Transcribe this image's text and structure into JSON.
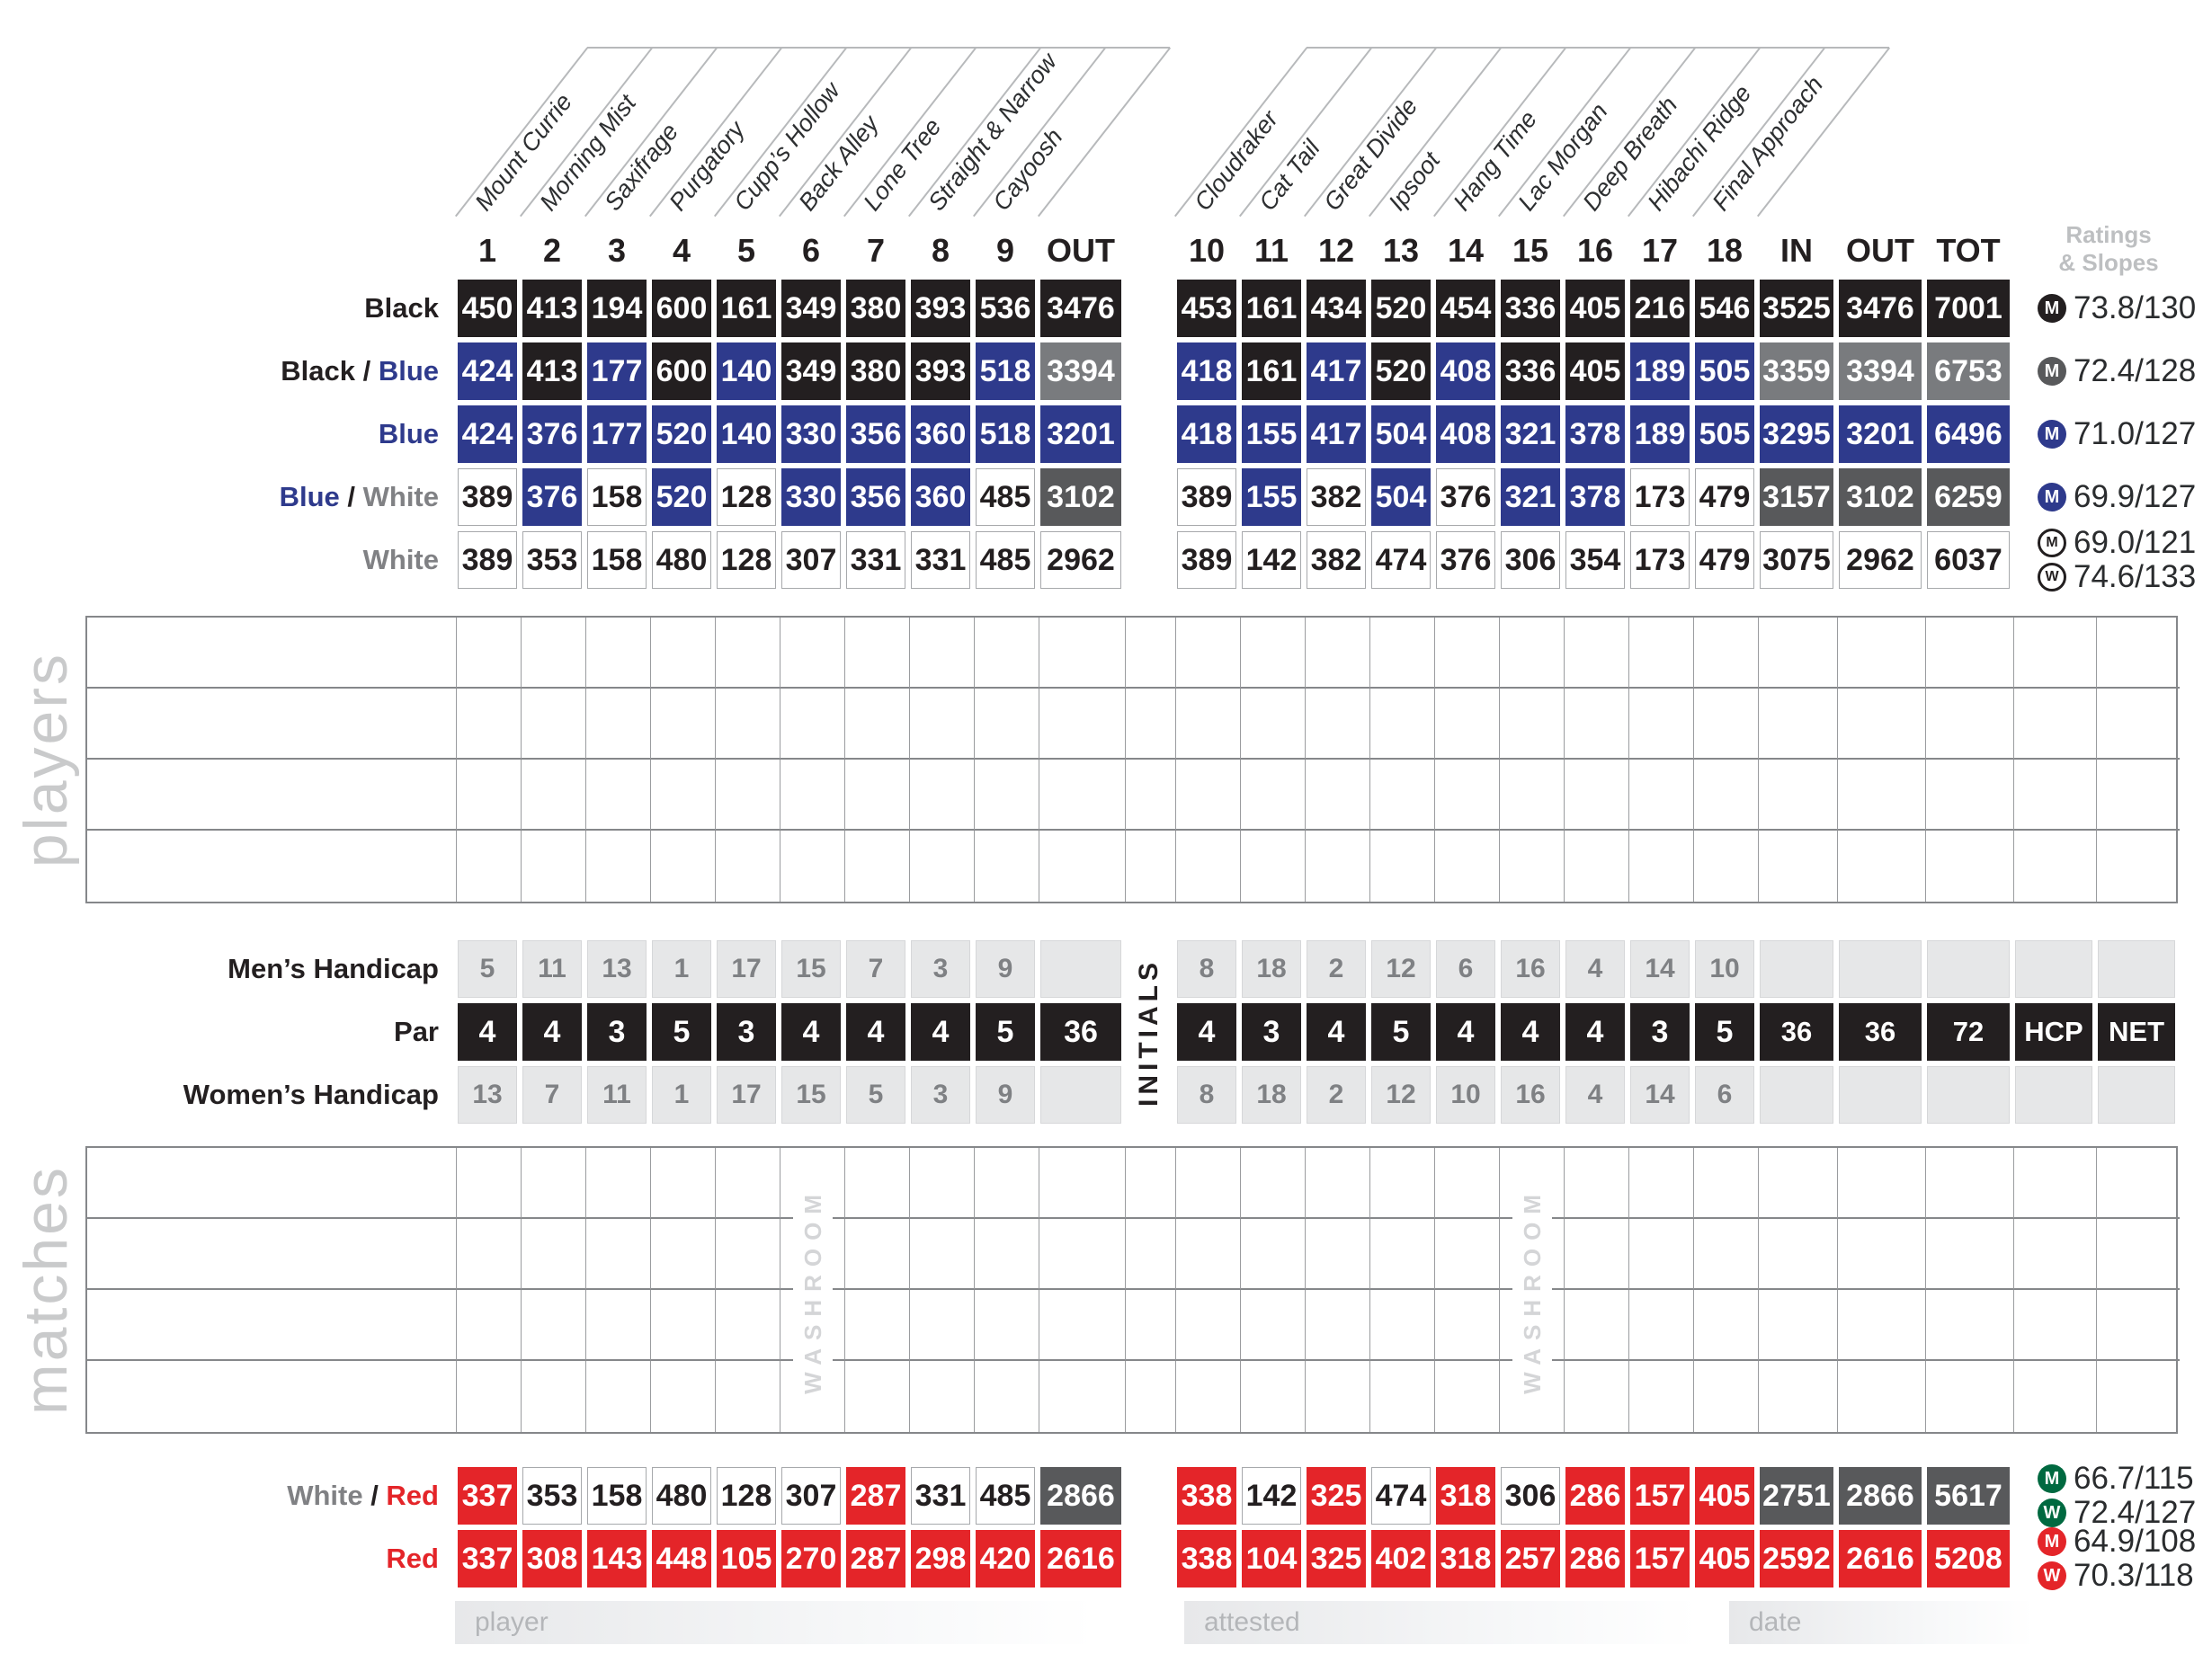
{
  "colors": {
    "black": "#231f20",
    "blue": "#2e3a8c",
    "white": "#ffffff",
    "gray_mid": "#797b7e",
    "gray_dark": "#58595b",
    "red": "#e42529",
    "green": "#006940",
    "light_gray": "#e6e7e8",
    "label_gray": "#808184"
  },
  "front_nine": {
    "numbers": [
      "1",
      "2",
      "3",
      "4",
      "5",
      "6",
      "7",
      "8",
      "9"
    ],
    "out_label": "OUT",
    "hole_names": [
      "Mount Currie",
      "Morning Mist",
      "Saxifrage",
      "Purgatory",
      "Cupp’s Hollow",
      "Back Alley",
      "Lone Tree",
      "Straight & Narrow",
      "Cayoosh"
    ]
  },
  "back_nine": {
    "numbers": [
      "10",
      "11",
      "12",
      "13",
      "14",
      "15",
      "16",
      "17",
      "18"
    ],
    "in_label": "IN",
    "out_label": "OUT",
    "tot_label": "TOT",
    "hole_names": [
      "Cloudraker",
      "Cat Tail",
      "Great Divide",
      "Ipsoot",
      "Hang Time",
      "Lac Morgan",
      "Deep Breath",
      "Hibachi Ridge",
      "Final Approach"
    ]
  },
  "ratings_header": {
    "line1": "Ratings",
    "line2": "& Slopes"
  },
  "tee_rows": [
    {
      "label_parts": [
        {
          "text": "Black",
          "color": "black"
        }
      ],
      "front_values": [
        "450",
        "413",
        "194",
        "600",
        "161",
        "349",
        "380",
        "393",
        "536"
      ],
      "front_colors": [
        "k",
        "k",
        "k",
        "k",
        "k",
        "k",
        "k",
        "k",
        "k"
      ],
      "out_value": "3476",
      "out_color": "k",
      "back_values": [
        "453",
        "161",
        "434",
        "520",
        "454",
        "336",
        "405",
        "216",
        "546"
      ],
      "back_colors": [
        "k",
        "k",
        "k",
        "k",
        "k",
        "k",
        "k",
        "k",
        "k"
      ],
      "in_value": "3525",
      "out2_value": "3476",
      "tot_value": "7001",
      "totals_color": "k",
      "ratings": [
        {
          "letter": "M",
          "style": "solid",
          "color": "black",
          "value": "73.8/130"
        }
      ]
    },
    {
      "label_parts": [
        {
          "text": "Black",
          "color": "black"
        },
        {
          "text": " / ",
          "color": "black"
        },
        {
          "text": "Blue",
          "color": "blue"
        }
      ],
      "front_values": [
        "424",
        "413",
        "177",
        "600",
        "140",
        "349",
        "380",
        "393",
        "518"
      ],
      "front_colors": [
        "b",
        "k",
        "b",
        "k",
        "b",
        "k",
        "k",
        "k",
        "b"
      ],
      "out_value": "3394",
      "out_color": "g",
      "back_values": [
        "418",
        "161",
        "417",
        "520",
        "408",
        "336",
        "405",
        "189",
        "505"
      ],
      "back_colors": [
        "b",
        "k",
        "b",
        "k",
        "b",
        "k",
        "k",
        "b",
        "b"
      ],
      "in_value": "3359",
      "out2_value": "3394",
      "tot_value": "6753",
      "totals_color": "g",
      "ratings": [
        {
          "letter": "M",
          "style": "solid",
          "color": "gray_dark",
          "value": "72.4/128"
        }
      ]
    },
    {
      "label_parts": [
        {
          "text": "Blue",
          "color": "blue"
        }
      ],
      "front_values": [
        "424",
        "376",
        "177",
        "520",
        "140",
        "330",
        "356",
        "360",
        "518"
      ],
      "front_colors": [
        "b",
        "b",
        "b",
        "b",
        "b",
        "b",
        "b",
        "b",
        "b"
      ],
      "out_value": "3201",
      "out_color": "b",
      "back_values": [
        "418",
        "155",
        "417",
        "504",
        "408",
        "321",
        "378",
        "189",
        "505"
      ],
      "back_colors": [
        "b",
        "b",
        "b",
        "b",
        "b",
        "b",
        "b",
        "b",
        "b"
      ],
      "in_value": "3295",
      "out2_value": "3201",
      "tot_value": "6496",
      "totals_color": "b",
      "ratings": [
        {
          "letter": "M",
          "style": "solid",
          "color": "blue",
          "value": "71.0/127"
        }
      ]
    },
    {
      "label_parts": [
        {
          "text": "Blue",
          "color": "blue"
        },
        {
          "text": " / ",
          "color": "black"
        },
        {
          "text": "White",
          "color": "label_gray"
        }
      ],
      "front_values": [
        "389",
        "376",
        "158",
        "520",
        "128",
        "330",
        "356",
        "360",
        "485"
      ],
      "front_colors": [
        "w",
        "b",
        "w",
        "b",
        "w",
        "b",
        "b",
        "b",
        "w"
      ],
      "out_value": "3102",
      "out_color": "G",
      "back_values": [
        "389",
        "155",
        "382",
        "504",
        "376",
        "321",
        "378",
        "173",
        "479"
      ],
      "back_colors": [
        "w",
        "b",
        "w",
        "b",
        "w",
        "b",
        "b",
        "w",
        "w"
      ],
      "in_value": "3157",
      "out2_value": "3102",
      "tot_value": "6259",
      "totals_color": "G",
      "ratings": [
        {
          "letter": "M",
          "style": "solid",
          "color": "blue",
          "value": "69.9/127"
        }
      ]
    },
    {
      "label_parts": [
        {
          "text": "White",
          "color": "label_gray"
        }
      ],
      "front_values": [
        "389",
        "353",
        "158",
        "480",
        "128",
        "307",
        "331",
        "331",
        "485"
      ],
      "front_colors": [
        "w",
        "w",
        "w",
        "w",
        "w",
        "w",
        "w",
        "w",
        "w"
      ],
      "out_value": "2962",
      "out_color": "w",
      "back_values": [
        "389",
        "142",
        "382",
        "474",
        "376",
        "306",
        "354",
        "173",
        "479"
      ],
      "back_colors": [
        "w",
        "w",
        "w",
        "w",
        "w",
        "w",
        "w",
        "w",
        "w"
      ],
      "in_value": "3075",
      "out2_value": "2962",
      "tot_value": "6037",
      "totals_color": "w",
      "ratings": [
        {
          "letter": "M",
          "style": "outline",
          "color": "black",
          "value": "69.0/121"
        },
        {
          "letter": "W",
          "style": "outline",
          "color": "black",
          "value": "74.6/133"
        }
      ]
    }
  ],
  "players_section": {
    "side_label": "players",
    "rows": 4
  },
  "handicap_section": {
    "mens_label": "Men’s Handicap",
    "par_label": "Par",
    "womens_label": "Women’s Handicap",
    "initials_label": "INITIALS",
    "mens_front": [
      "5",
      "11",
      "13",
      "1",
      "17",
      "15",
      "7",
      "3",
      "9"
    ],
    "mens_back": [
      "8",
      "18",
      "2",
      "12",
      "6",
      "16",
      "4",
      "14",
      "10"
    ],
    "par_front": [
      "4",
      "4",
      "3",
      "5",
      "3",
      "4",
      "4",
      "4",
      "5"
    ],
    "par_out": "36",
    "par_back": [
      "4",
      "3",
      "4",
      "5",
      "4",
      "4",
      "4",
      "3",
      "5"
    ],
    "par_in": "36",
    "par_out2": "36",
    "par_tot": "72",
    "hcp_label": "HCP",
    "net_label": "NET",
    "womens_front": [
      "13",
      "7",
      "11",
      "1",
      "17",
      "15",
      "5",
      "3",
      "9"
    ],
    "womens_back": [
      "8",
      "18",
      "2",
      "12",
      "10",
      "16",
      "4",
      "14",
      "6"
    ]
  },
  "matches_section": {
    "side_label": "matches",
    "rows": 4,
    "washroom_label": "WASHROOM"
  },
  "bottom_rows": [
    {
      "label_parts": [
        {
          "text": "White",
          "color": "label_gray"
        },
        {
          "text": " / ",
          "color": "black"
        },
        {
          "text": "Red",
          "color": "red"
        }
      ],
      "front_values": [
        "337",
        "353",
        "158",
        "480",
        "128",
        "307",
        "287",
        "331",
        "485"
      ],
      "front_colors": [
        "r",
        "w",
        "w",
        "w",
        "w",
        "w",
        "r",
        "w",
        "w"
      ],
      "out_value": "2866",
      "out_color": "G",
      "back_values": [
        "338",
        "142",
        "325",
        "474",
        "318",
        "306",
        "286",
        "157",
        "405"
      ],
      "back_colors": [
        "r",
        "w",
        "r",
        "w",
        "r",
        "w",
        "r",
        "r",
        "r"
      ],
      "in_value": "2751",
      "out2_value": "2866",
      "tot_value": "5617",
      "totals_color": "G",
      "ratings": [
        {
          "letter": "M",
          "style": "solid",
          "color": "green",
          "value": "66.7/115"
        },
        {
          "letter": "W",
          "style": "solid",
          "color": "green",
          "value": "72.4/127"
        }
      ]
    },
    {
      "label_parts": [
        {
          "text": "Red",
          "color": "red"
        }
      ],
      "front_values": [
        "337",
        "308",
        "143",
        "448",
        "105",
        "270",
        "287",
        "298",
        "420"
      ],
      "front_colors": [
        "r",
        "r",
        "r",
        "r",
        "r",
        "r",
        "r",
        "r",
        "r"
      ],
      "out_value": "2616",
      "out_color": "r",
      "back_values": [
        "338",
        "104",
        "325",
        "402",
        "318",
        "257",
        "286",
        "157",
        "405"
      ],
      "back_colors": [
        "r",
        "r",
        "r",
        "r",
        "r",
        "r",
        "r",
        "r",
        "r"
      ],
      "in_value": "2592",
      "out2_value": "2616",
      "tot_value": "5208",
      "totals_color": "r",
      "ratings": [
        {
          "letter": "M",
          "style": "solid",
          "color": "red",
          "value": "64.9/108"
        },
        {
          "letter": "W",
          "style": "solid",
          "color": "red",
          "value": "70.3/118"
        }
      ]
    }
  ],
  "footer": {
    "player_label": "player",
    "attested_label": "attested",
    "date_label": "date"
  }
}
